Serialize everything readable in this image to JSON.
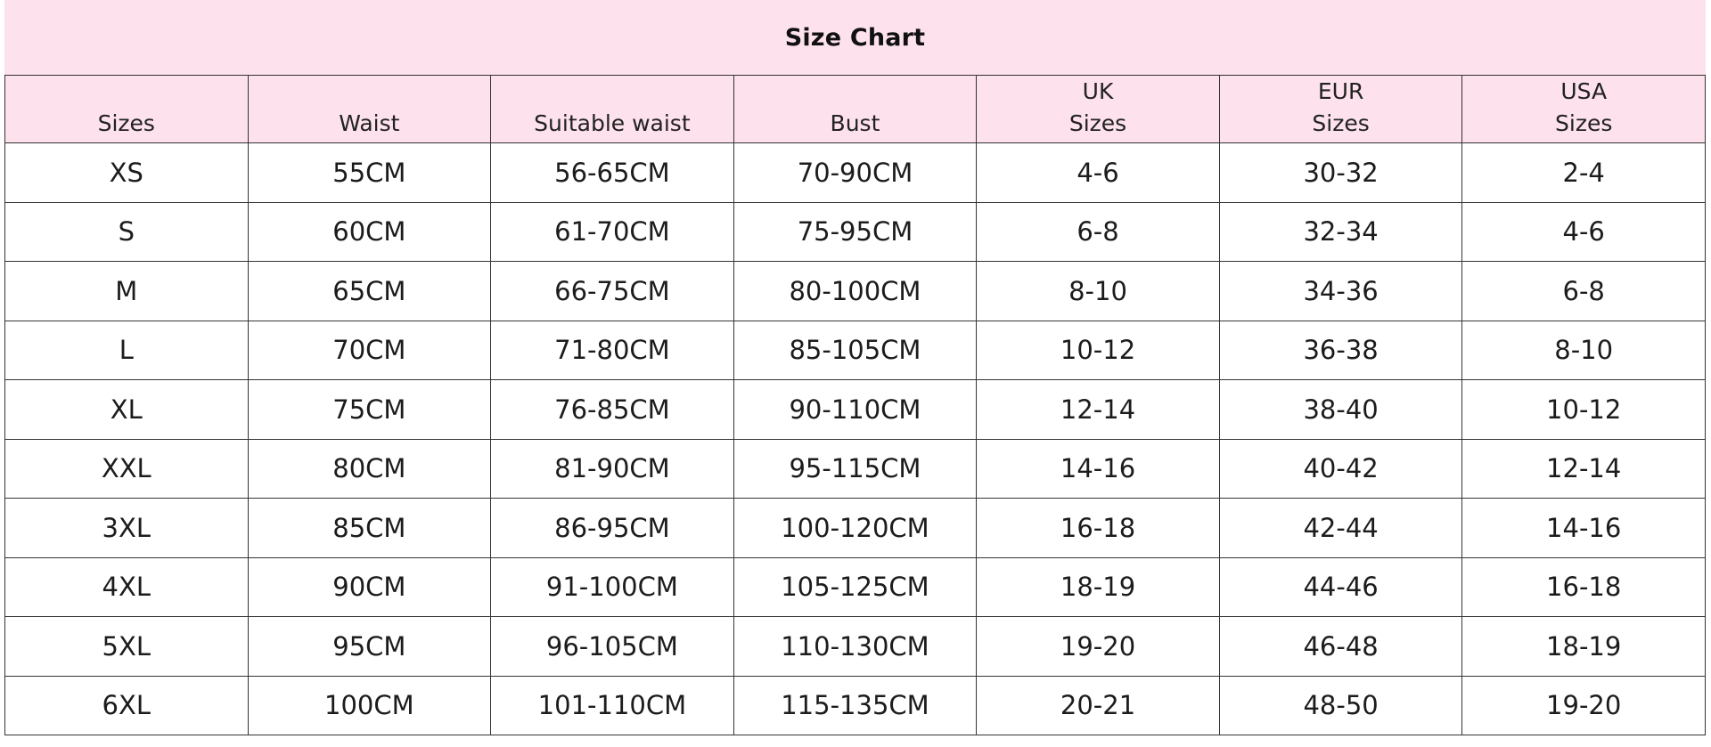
{
  "title": "Size Chart",
  "columns": [
    {
      "lines": [
        "",
        "Sizes"
      ]
    },
    {
      "lines": [
        "",
        "Waist"
      ]
    },
    {
      "lines": [
        "",
        "Suitable waist"
      ]
    },
    {
      "lines": [
        "",
        "Bust"
      ]
    },
    {
      "lines": [
        "UK",
        "Sizes"
      ]
    },
    {
      "lines": [
        "EUR",
        "Sizes"
      ]
    },
    {
      "lines": [
        "USA",
        "Sizes"
      ]
    }
  ],
  "rows": [
    [
      "XS",
      "55CM",
      "56-65CM",
      "70-90CM",
      "4-6",
      "30-32",
      "2-4"
    ],
    [
      "S",
      "60CM",
      "61-70CM",
      "75-95CM",
      "6-8",
      "32-34",
      "4-6"
    ],
    [
      "M",
      "65CM",
      "66-75CM",
      "80-100CM",
      "8-10",
      "34-36",
      "6-8"
    ],
    [
      "L",
      "70CM",
      "71-80CM",
      "85-105CM",
      "10-12",
      "36-38",
      "8-10"
    ],
    [
      "XL",
      "75CM",
      "76-85CM",
      "90-110CM",
      "12-14",
      "38-40",
      "10-12"
    ],
    [
      "XXL",
      "80CM",
      "81-90CM",
      "95-115CM",
      "14-16",
      "40-42",
      "12-14"
    ],
    [
      "3XL",
      "85CM",
      "86-95CM",
      "100-120CM",
      "16-18",
      "42-44",
      "14-16"
    ],
    [
      "4XL",
      "90CM",
      "91-100CM",
      "105-125CM",
      "18-19",
      "44-46",
      "16-18"
    ],
    [
      "5XL",
      "95CM",
      "96-105CM",
      "110-130CM",
      "19-20",
      "46-48",
      "18-19"
    ],
    [
      "6XL",
      "100CM",
      "101-110CM",
      "115-135CM",
      "20-21",
      "48-50",
      "19-20"
    ]
  ],
  "colors": {
    "header_background": "#fde1ec",
    "border": "#333333"
  }
}
